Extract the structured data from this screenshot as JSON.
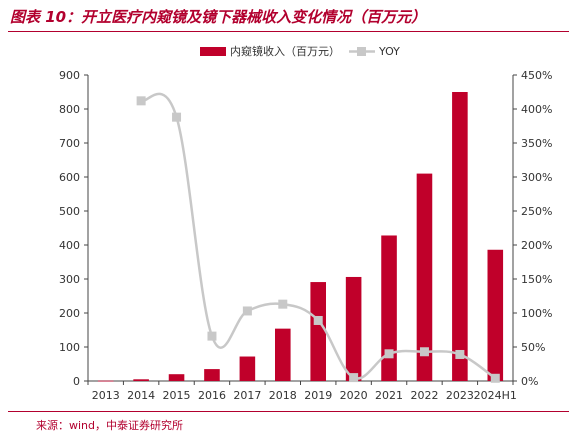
{
  "figure": {
    "title": "图表 10：开立医疗内窥镜及镜下器械收入变化情况（百万元）",
    "source": "来源：wind，中泰证券研究所"
  },
  "chart_data": {
    "type": "bar",
    "categories": [
      "2013",
      "2014",
      "2015",
      "2016",
      "2017",
      "2018",
      "2019",
      "2020",
      "2021",
      "2022",
      "2023",
      "2024H1"
    ],
    "series": [
      {
        "name": "内窥镜收入（百万元）",
        "type": "bar",
        "axis": "left",
        "color": "#c0002a",
        "values": [
          1,
          5,
          20,
          35,
          72,
          154,
          291,
          306,
          428,
          610,
          850,
          386
        ]
      },
      {
        "name": "YOY",
        "type": "line",
        "axis": "right",
        "color": "#c8c8c8",
        "values": [
          null,
          4.12,
          3.88,
          0.66,
          1.03,
          1.13,
          0.89,
          0.05,
          0.4,
          0.43,
          0.39,
          0.04
        ]
      }
    ],
    "y_left": {
      "min": 0,
      "max": 900,
      "ticks": [
        0,
        100,
        200,
        300,
        400,
        500,
        600,
        700,
        800,
        900
      ]
    },
    "y_right": {
      "min": 0,
      "max": 4.5,
      "ticks": [
        "0%",
        "50%",
        "100%",
        "150%",
        "200%",
        "250%",
        "300%",
        "350%",
        "400%",
        "450%"
      ]
    },
    "legend_position": "top",
    "grid": false
  }
}
